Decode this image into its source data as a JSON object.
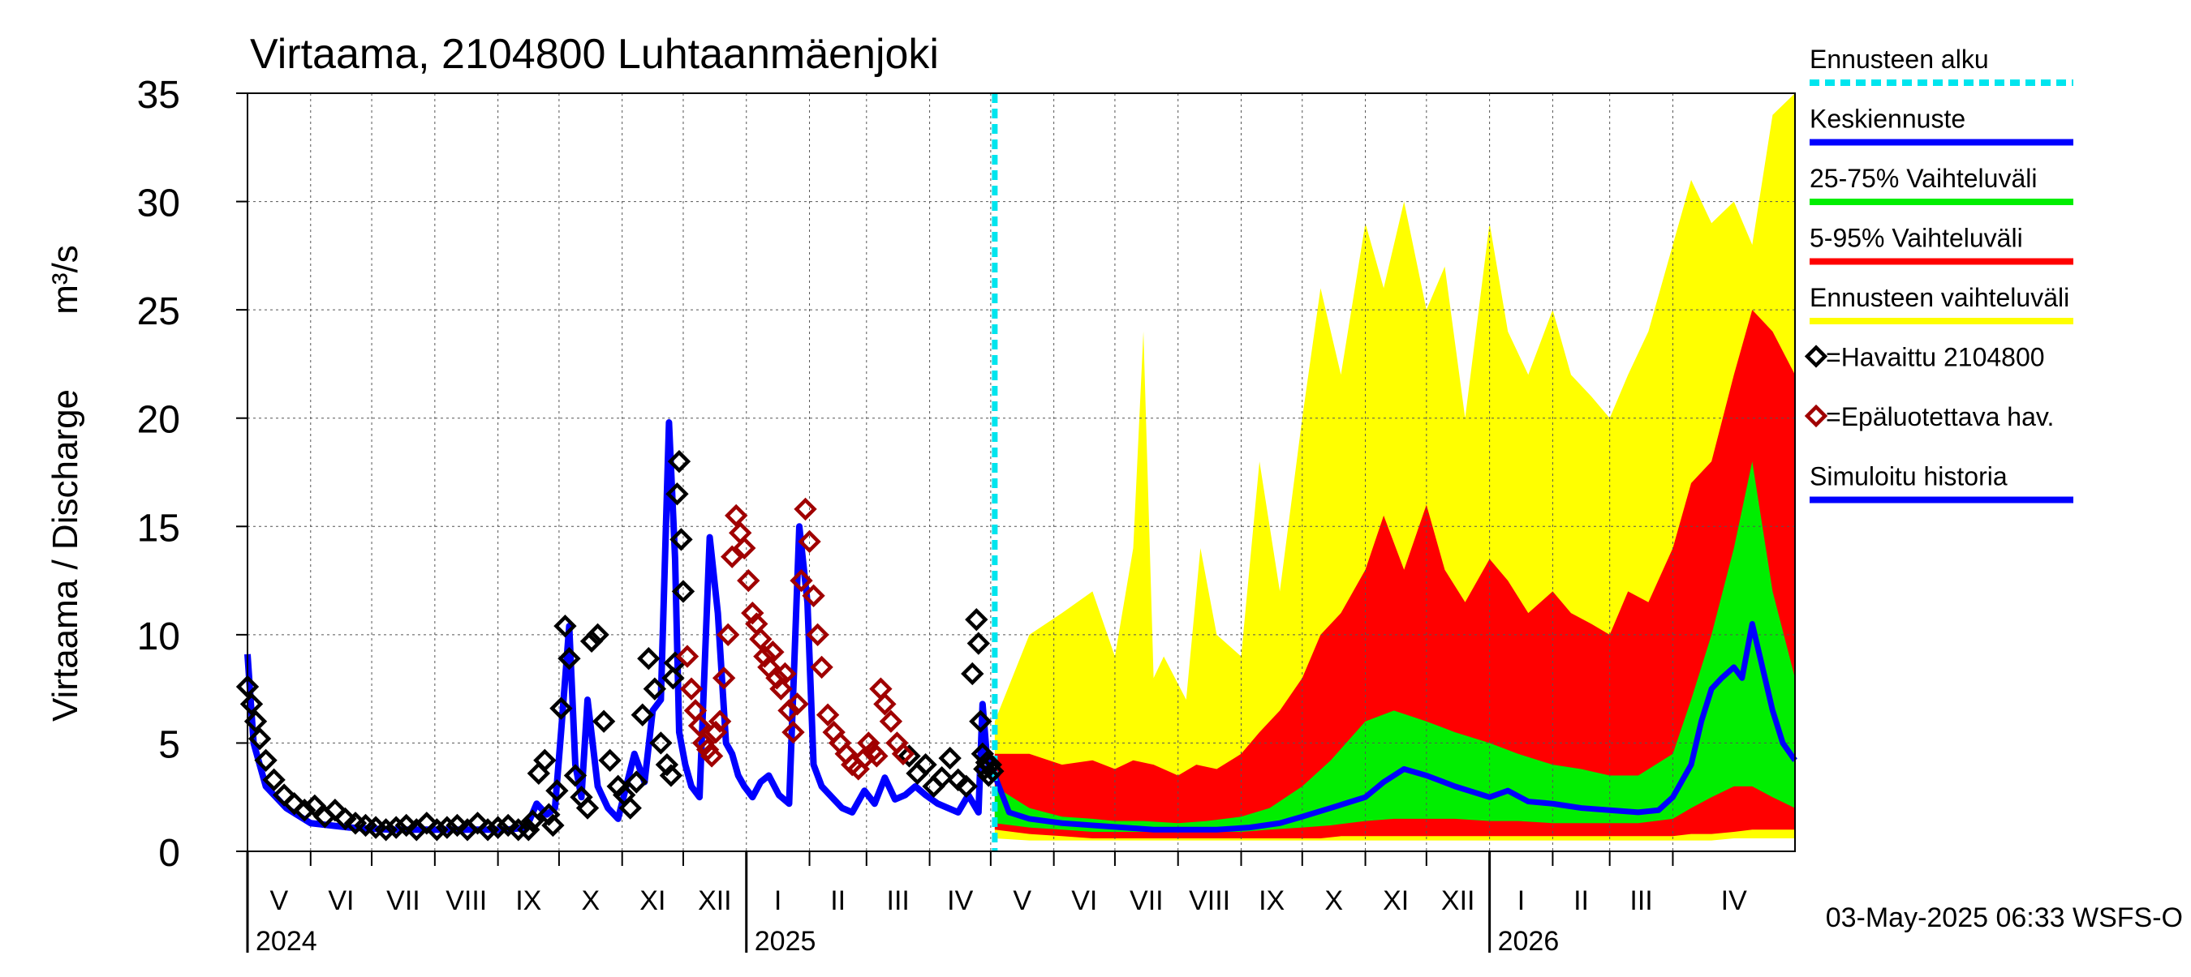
{
  "title": "Virtaama, 2104800 Luhtaanmäenjoki",
  "ylabel_fi": "Virtaama / Discharge",
  "ylabel_unit": "m³/s",
  "footer": "03-May-2025 06:33 WSFS-O",
  "colors": {
    "forecast_start": "#00e5ee",
    "mean_forecast": "#0000ff",
    "band_25_75": "#00ee00",
    "band_5_95": "#ff0000",
    "band_full": "#ffff00",
    "observed": "#000000",
    "unreliable": "#a00000",
    "simulated": "#0000ff"
  },
  "legend": [
    {
      "label": "Ennusteen alku",
      "style": "dashed",
      "color": "#00e5ee"
    },
    {
      "label": "Keskiennuste",
      "style": "line",
      "color": "#0000ff"
    },
    {
      "label": "25-75% Vaihteluväli",
      "style": "line",
      "color": "#00ee00"
    },
    {
      "label": "5-95% Vaihteluväli",
      "style": "line",
      "color": "#ff0000"
    },
    {
      "label": "Ennusteen vaihteluväli",
      "style": "line",
      "color": "#ffff00"
    },
    {
      "label": "=Havaittu 2104800",
      "style": "marker",
      "color": "#000000"
    },
    {
      "label": "=Epäluotettava hav.",
      "style": "marker",
      "color": "#a00000"
    },
    {
      "label": "Simuloitu historia",
      "style": "line",
      "color": "#0000ff"
    }
  ],
  "chart_data": {
    "type": "line",
    "x_start": "2024-05-01",
    "x_end": "2026-05-31",
    "ylim": [
      0,
      35
    ],
    "yticks": [
      "0",
      "5",
      "10",
      "15",
      "20",
      "25",
      "30",
      "35"
    ],
    "grid": true,
    "forecast_start": "2025-05-03",
    "months": [
      {
        "label": "V",
        "start": "2024-05-01"
      },
      {
        "label": "VI",
        "start": "2024-06-01"
      },
      {
        "label": "VII",
        "start": "2024-07-01"
      },
      {
        "label": "VIII",
        "start": "2024-08-01"
      },
      {
        "label": "IX",
        "start": "2024-09-01"
      },
      {
        "label": "X",
        "start": "2024-10-01"
      },
      {
        "label": "XI",
        "start": "2024-11-01"
      },
      {
        "label": "XII",
        "start": "2024-12-01"
      },
      {
        "label": "I",
        "start": "2025-01-01"
      },
      {
        "label": "II",
        "start": "2025-02-01"
      },
      {
        "label": "III",
        "start": "2025-03-01"
      },
      {
        "label": "IV",
        "start": "2025-04-01"
      },
      {
        "label": "V",
        "start": "2025-05-01"
      },
      {
        "label": "VI",
        "start": "2025-06-01"
      },
      {
        "label": "VII",
        "start": "2025-07-01"
      },
      {
        "label": "VIII",
        "start": "2025-08-01"
      },
      {
        "label": "IX",
        "start": "2025-09-01"
      },
      {
        "label": "X",
        "start": "2025-10-01"
      },
      {
        "label": "XI",
        "start": "2025-11-01"
      },
      {
        "label": "XII",
        "start": "2025-12-01"
      },
      {
        "label": "I",
        "start": "2026-01-01"
      },
      {
        "label": "II",
        "start": "2026-02-01"
      },
      {
        "label": "III",
        "start": "2026-03-01"
      },
      {
        "label": "IV",
        "start": "2026-04-01"
      }
    ],
    "years": [
      {
        "label": "2024",
        "date": "2024-05-01"
      },
      {
        "label": "2025",
        "date": "2025-01-01"
      },
      {
        "label": "2026",
        "date": "2026-01-01"
      }
    ],
    "series": [
      {
        "name": "Simuloitu historia",
        "dates": [
          "2024-05-01",
          "2024-05-04",
          "2024-05-10",
          "2024-05-20",
          "2024-06-01",
          "2024-06-20",
          "2024-07-10",
          "2024-08-01",
          "2024-08-20",
          "2024-09-05",
          "2024-09-15",
          "2024-09-20",
          "2024-09-25",
          "2024-09-29",
          "2024-10-02",
          "2024-10-06",
          "2024-10-09",
          "2024-10-12",
          "2024-10-15",
          "2024-10-20",
          "2024-10-25",
          "2024-10-30",
          "2024-11-03",
          "2024-11-07",
          "2024-11-12",
          "2024-11-16",
          "2024-11-20",
          "2024-11-24",
          "2024-11-27",
          "2024-11-29",
          "2024-12-02",
          "2024-12-05",
          "2024-12-09",
          "2024-12-14",
          "2024-12-18",
          "2024-12-22",
          "2024-12-25",
          "2024-12-28",
          "2024-12-31",
          "2025-01-04",
          "2025-01-08",
          "2025-01-12",
          "2025-01-17",
          "2025-01-22",
          "2025-01-27",
          "2025-01-31",
          "2025-02-03",
          "2025-02-07",
          "2025-02-12",
          "2025-02-17",
          "2025-02-22",
          "2025-02-28",
          "2025-03-05",
          "2025-03-10",
          "2025-03-15",
          "2025-03-20",
          "2025-03-25",
          "2025-03-30",
          "2025-04-05",
          "2025-04-10",
          "2025-04-15",
          "2025-04-20",
          "2025-04-25",
          "2025-04-27",
          "2025-04-29",
          "2025-05-01",
          "2025-05-03"
        ],
        "y": [
          9.1,
          5.0,
          3.0,
          2.0,
          1.3,
          1.1,
          1.0,
          1.0,
          1.0,
          1.0,
          1.1,
          2.2,
          1.7,
          2.0,
          5.5,
          10.4,
          4.0,
          2.5,
          7.0,
          3.0,
          2.0,
          1.5,
          3.0,
          4.5,
          3.2,
          6.5,
          7.0,
          19.8,
          13.5,
          5.5,
          4.0,
          3.0,
          2.5,
          14.5,
          11.0,
          5.0,
          4.5,
          3.5,
          3.0,
          2.5,
          3.2,
          3.5,
          2.6,
          2.2,
          15.0,
          11.5,
          4.0,
          3.0,
          2.5,
          2.0,
          1.8,
          2.8,
          2.2,
          3.4,
          2.4,
          2.6,
          3.0,
          2.6,
          2.2,
          2.0,
          1.8,
          2.6,
          1.8,
          6.8,
          4.5,
          3.5,
          3.8
        ]
      },
      {
        "name": "=Havaittu 2104800",
        "dates": [
          "2024-05-01",
          "2024-05-03",
          "2024-05-05",
          "2024-05-07",
          "2024-05-10",
          "2024-05-14",
          "2024-05-19",
          "2024-05-24",
          "2024-05-29",
          "2024-06-03",
          "2024-06-08",
          "2024-06-13",
          "2024-06-18",
          "2024-06-23",
          "2024-06-28",
          "2024-07-03",
          "2024-07-08",
          "2024-07-13",
          "2024-07-18",
          "2024-07-23",
          "2024-07-28",
          "2024-08-02",
          "2024-08-07",
          "2024-08-12",
          "2024-08-17",
          "2024-08-22",
          "2024-08-27",
          "2024-09-01",
          "2024-09-06",
          "2024-09-11",
          "2024-09-16",
          "2024-09-18",
          "2024-09-21",
          "2024-09-24",
          "2024-09-26",
          "2024-09-28",
          "2024-09-30",
          "2024-10-02",
          "2024-10-04",
          "2024-10-06",
          "2024-10-09",
          "2024-10-12",
          "2024-10-15",
          "2024-10-17",
          "2024-10-20",
          "2024-10-23",
          "2024-10-26",
          "2024-10-30",
          "2024-11-02",
          "2024-11-05",
          "2024-11-08",
          "2024-11-11",
          "2024-11-14",
          "2024-11-17",
          "2024-11-20",
          "2024-11-23",
          "2024-11-25",
          "2024-11-26",
          "2024-11-27",
          "2024-11-28",
          "2024-11-29",
          "2024-11-30",
          "2024-12-01",
          "2025-03-22",
          "2025-03-26",
          "2025-03-30",
          "2025-04-03",
          "2025-04-07",
          "2025-04-11",
          "2025-04-15",
          "2025-04-19",
          "2025-04-22",
          "2025-04-24",
          "2025-04-25",
          "2025-04-26",
          "2025-04-27",
          "2025-04-28",
          "2025-04-29",
          "2025-04-30",
          "2025-05-01",
          "2025-05-02"
        ],
        "y": [
          7.6,
          6.8,
          6.0,
          5.2,
          4.2,
          3.3,
          2.6,
          2.2,
          1.9,
          2.1,
          1.6,
          1.9,
          1.5,
          1.3,
          1.2,
          1.1,
          1.0,
          1.1,
          1.2,
          1.0,
          1.3,
          1.0,
          1.1,
          1.2,
          1.0,
          1.3,
          1.0,
          1.1,
          1.2,
          1.0,
          1.0,
          1.4,
          3.6,
          4.2,
          1.7,
          1.2,
          2.8,
          6.6,
          10.4,
          8.9,
          3.5,
          2.5,
          2.0,
          9.7,
          10.0,
          6.0,
          4.2,
          3.0,
          2.6,
          2.0,
          3.2,
          6.3,
          8.9,
          7.5,
          5.0,
          4.0,
          3.5,
          8.0,
          8.7,
          16.5,
          18.0,
          14.4,
          12.0,
          4.4,
          3.6,
          4.0,
          3.0,
          3.4,
          4.3,
          3.3,
          3.0,
          8.2,
          10.7,
          9.6,
          6.0,
          4.5,
          3.8,
          4.1,
          3.5,
          4.0,
          3.7
        ]
      },
      {
        "name": "=Epäluotettava hav.",
        "dates": [
          "2024-12-03",
          "2024-12-05",
          "2024-12-07",
          "2024-12-09",
          "2024-12-11",
          "2024-12-13",
          "2024-12-15",
          "2024-12-17",
          "2024-12-19",
          "2024-12-21",
          "2024-12-23",
          "2024-12-25",
          "2024-12-27",
          "2024-12-29",
          "2024-12-31",
          "2025-01-02",
          "2025-01-04",
          "2025-01-06",
          "2025-01-08",
          "2025-01-10",
          "2025-01-12",
          "2025-01-14",
          "2025-01-16",
          "2025-01-18",
          "2025-01-20",
          "2025-01-22",
          "2025-01-24",
          "2025-01-26",
          "2025-01-28",
          "2025-01-30",
          "2025-02-01",
          "2025-02-03",
          "2025-02-05",
          "2025-02-07",
          "2025-02-10",
          "2025-02-13",
          "2025-02-16",
          "2025-02-19",
          "2025-02-22",
          "2025-02-25",
          "2025-02-28",
          "2025-03-02",
          "2025-03-04",
          "2025-03-06",
          "2025-03-08",
          "2025-03-10",
          "2025-03-13",
          "2025-03-16",
          "2025-03-19"
        ],
        "y": [
          9.0,
          7.5,
          6.5,
          5.8,
          5.0,
          4.7,
          4.4,
          5.5,
          6.0,
          8.0,
          10.0,
          13.6,
          15.5,
          14.7,
          14.0,
          12.5,
          11.0,
          10.5,
          9.8,
          9.0,
          8.5,
          9.2,
          8.0,
          7.5,
          8.2,
          6.5,
          5.5,
          6.8,
          12.5,
          15.8,
          14.3,
          11.8,
          10.0,
          8.5,
          6.3,
          5.5,
          5.0,
          4.5,
          4.0,
          3.8,
          4.3,
          5.0,
          4.6,
          4.4,
          7.5,
          6.8,
          6.0,
          5.0,
          4.5
        ]
      },
      {
        "name": "Ennusteen vaihteluväli",
        "dates": [
          "2025-05-03",
          "2025-05-20",
          "2025-06-05",
          "2025-06-20",
          "2025-07-01",
          "2025-07-10",
          "2025-07-15",
          "2025-07-20",
          "2025-07-25",
          "2025-08-05",
          "2025-08-12",
          "2025-08-20",
          "2025-09-01",
          "2025-09-10",
          "2025-09-20",
          "2025-10-01",
          "2025-10-10",
          "2025-10-20",
          "2025-11-01",
          "2025-11-10",
          "2025-11-20",
          "2025-12-01",
          "2025-12-10",
          "2025-12-20",
          "2026-01-01",
          "2026-01-10",
          "2026-01-20",
          "2026-02-01",
          "2026-02-10",
          "2026-02-20",
          "2026-03-01",
          "2026-03-10",
          "2026-03-20",
          "2026-04-01",
          "2026-04-10",
          "2026-04-20",
          "2026-05-01",
          "2026-05-10",
          "2026-05-20",
          "2026-05-31"
        ],
        "upper": [
          6,
          10,
          11,
          12,
          9,
          14,
          24,
          8,
          9,
          7,
          14,
          10,
          9,
          18,
          12,
          20,
          26,
          22,
          29,
          26,
          30,
          25,
          27,
          20,
          29,
          24,
          22,
          25,
          22,
          21,
          20,
          22,
          24,
          28,
          31,
          29,
          30,
          28,
          34,
          35
        ],
        "lower": [
          0.6,
          0.5,
          0.5,
          0.5,
          0.5,
          0.5,
          0.5,
          0.5,
          0.5,
          0.5,
          0.5,
          0.5,
          0.5,
          0.5,
          0.5,
          0.5,
          0.5,
          0.5,
          0.5,
          0.5,
          0.5,
          0.5,
          0.5,
          0.5,
          0.5,
          0.5,
          0.5,
          0.5,
          0.5,
          0.5,
          0.5,
          0.5,
          0.5,
          0.5,
          0.5,
          0.5,
          0.6,
          0.6,
          0.6,
          0.6
        ]
      },
      {
        "name": "5-95% Vaihteluväli",
        "dates": [
          "2025-05-03",
          "2025-05-20",
          "2025-06-05",
          "2025-06-20",
          "2025-07-01",
          "2025-07-10",
          "2025-07-20",
          "2025-08-01",
          "2025-08-10",
          "2025-08-20",
          "2025-09-01",
          "2025-09-10",
          "2025-09-20",
          "2025-10-01",
          "2025-10-10",
          "2025-10-20",
          "2025-11-01",
          "2025-11-10",
          "2025-11-20",
          "2025-12-01",
          "2025-12-10",
          "2025-12-20",
          "2026-01-01",
          "2026-01-10",
          "2026-01-20",
          "2026-02-01",
          "2026-02-10",
          "2026-02-20",
          "2026-03-01",
          "2026-03-10",
          "2026-03-20",
          "2026-04-01",
          "2026-04-10",
          "2026-04-20",
          "2026-05-01",
          "2026-05-10",
          "2026-05-20",
          "2026-05-31"
        ],
        "upper": [
          4.5,
          4.5,
          4.0,
          4.2,
          3.8,
          4.2,
          4.0,
          3.5,
          4.0,
          3.8,
          4.5,
          5.5,
          6.5,
          8.0,
          10.0,
          11.0,
          13.0,
          15.5,
          13.0,
          16.0,
          13.0,
          11.5,
          13.5,
          12.5,
          11.0,
          12.0,
          11.0,
          10.5,
          10.0,
          12.0,
          11.5,
          14.0,
          17.0,
          18.0,
          22.0,
          25.0,
          24.0,
          22.0
        ],
        "lower": [
          1.0,
          0.8,
          0.7,
          0.6,
          0.6,
          0.6,
          0.6,
          0.6,
          0.6,
          0.6,
          0.6,
          0.6,
          0.6,
          0.6,
          0.6,
          0.7,
          0.7,
          0.7,
          0.7,
          0.7,
          0.7,
          0.7,
          0.7,
          0.7,
          0.7,
          0.7,
          0.7,
          0.7,
          0.7,
          0.7,
          0.7,
          0.7,
          0.8,
          0.8,
          0.9,
          1.0,
          1.0,
          1.0
        ]
      },
      {
        "name": "25-75% Vaihteluväli",
        "dates": [
          "2025-05-03",
          "2025-05-20",
          "2025-06-05",
          "2025-06-20",
          "2025-07-01",
          "2025-07-15",
          "2025-08-01",
          "2025-08-15",
          "2025-09-01",
          "2025-09-15",
          "2025-10-01",
          "2025-10-15",
          "2025-11-01",
          "2025-11-15",
          "2025-12-01",
          "2025-12-15",
          "2026-01-01",
          "2026-01-15",
          "2026-02-01",
          "2026-02-15",
          "2026-03-01",
          "2026-03-15",
          "2026-04-01",
          "2026-04-10",
          "2026-04-20",
          "2026-05-01",
          "2026-05-10",
          "2026-05-20",
          "2026-05-31"
        ],
        "upper": [
          3.0,
          2.0,
          1.6,
          1.5,
          1.4,
          1.4,
          1.3,
          1.4,
          1.6,
          2.0,
          3.0,
          4.2,
          6.0,
          6.5,
          6.0,
          5.5,
          5.0,
          4.5,
          4.0,
          3.8,
          3.5,
          3.5,
          4.5,
          7.0,
          10.0,
          14.0,
          18.0,
          12.0,
          8.0
        ],
        "lower": [
          1.3,
          1.1,
          1.0,
          0.9,
          0.9,
          0.9,
          0.9,
          0.9,
          0.9,
          1.0,
          1.1,
          1.2,
          1.4,
          1.5,
          1.5,
          1.5,
          1.4,
          1.4,
          1.3,
          1.3,
          1.3,
          1.3,
          1.5,
          2.0,
          2.5,
          3.0,
          3.0,
          2.5,
          2.0
        ]
      },
      {
        "name": "Keskiennuste",
        "dates": [
          "2025-05-03",
          "2025-05-10",
          "2025-05-20",
          "2025-06-05",
          "2025-06-20",
          "2025-07-05",
          "2025-07-20",
          "2025-08-05",
          "2025-08-20",
          "2025-09-05",
          "2025-09-20",
          "2025-10-01",
          "2025-10-15",
          "2025-11-01",
          "2025-11-10",
          "2025-11-20",
          "2025-12-01",
          "2025-12-15",
          "2026-01-01",
          "2026-01-10",
          "2026-01-20",
          "2026-02-01",
          "2026-02-15",
          "2026-03-01",
          "2026-03-15",
          "2026-03-25",
          "2026-04-01",
          "2026-04-10",
          "2026-04-15",
          "2026-04-20",
          "2026-04-25",
          "2026-05-01",
          "2026-05-05",
          "2026-05-10",
          "2026-05-15",
          "2026-05-20",
          "2026-05-25",
          "2026-05-31"
        ],
        "y": [
          3.5,
          1.8,
          1.5,
          1.3,
          1.2,
          1.1,
          1.0,
          1.0,
          1.0,
          1.1,
          1.3,
          1.6,
          2.0,
          2.5,
          3.2,
          3.8,
          3.5,
          3.0,
          2.5,
          2.8,
          2.3,
          2.2,
          2.0,
          1.9,
          1.8,
          1.9,
          2.5,
          4.0,
          6.0,
          7.5,
          8.0,
          8.5,
          8.0,
          10.5,
          8.5,
          6.5,
          5.0,
          4.2
        ]
      }
    ]
  }
}
